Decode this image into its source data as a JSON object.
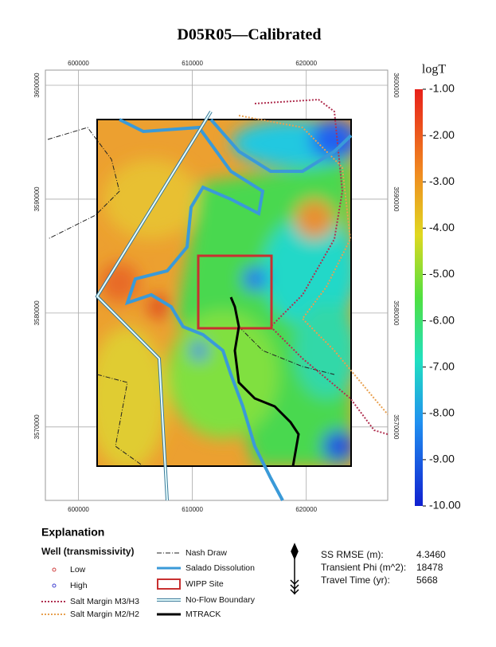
{
  "title": "D05R05—Calibrated",
  "map": {
    "xlim": [
      597100,
      627150
    ],
    "ylim": [
      3563550,
      3601330
    ],
    "xticks": [
      600000,
      610000,
      620000
    ],
    "yticks": [
      3570000,
      3580000,
      3590000,
      3600000
    ]
  },
  "colorbar": {
    "title": "logT",
    "lim": [
      -10,
      -1
    ],
    "ticks": [
      {
        "value": -1,
        "label": "-1.00"
      },
      {
        "value": -2,
        "label": "-2.00"
      },
      {
        "value": -3,
        "label": "-3.00"
      },
      {
        "value": -4,
        "label": "-4.00"
      },
      {
        "value": -5,
        "label": "-5.00"
      },
      {
        "value": -6,
        "label": "-6.00"
      },
      {
        "value": -7,
        "label": "-7.00"
      },
      {
        "value": -8,
        "label": "-8.00"
      },
      {
        "value": -9,
        "label": "-9.00"
      },
      {
        "value": -10,
        "label": "-10.00"
      }
    ]
  },
  "legend": {
    "title": "Explanation",
    "wells_title": "Well (transmissivity)",
    "items": [
      "Low",
      "High",
      "Salt Margin M3/H3",
      "Salt Margin M2/H2",
      "Nash Draw",
      "Salado Dissolution",
      "WIPP Site",
      "No-Flow Boundary",
      "MTRACK"
    ]
  },
  "stats": [
    {
      "label": "SS RMSE (m):",
      "value": "4.3460"
    },
    {
      "label": "Transient Phi (m^2):",
      "value": "18478"
    },
    {
      "label": "Travel Time (yr):",
      "value": "5668"
    }
  ]
}
